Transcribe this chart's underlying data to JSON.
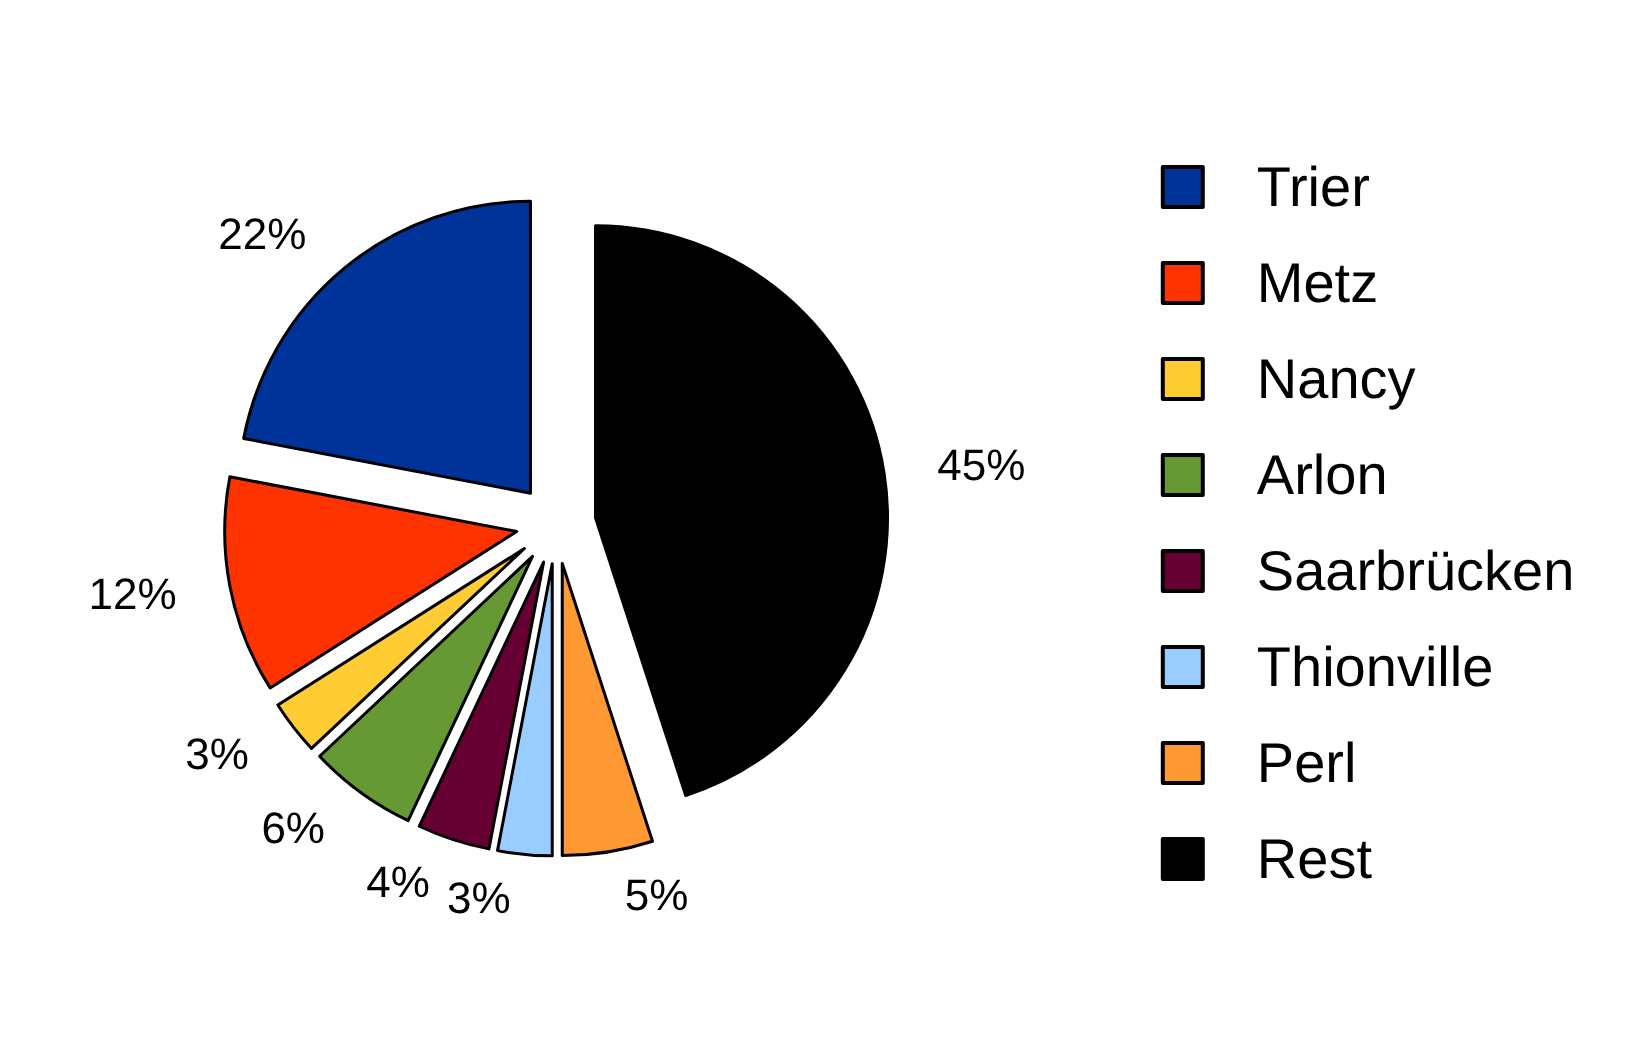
{
  "chart_data": {
    "type": "pie",
    "categories": [
      "Trier",
      "Metz",
      "Nancy",
      "Arlon",
      "Saarbrücken",
      "Thionville",
      "Perl",
      "Rest"
    ],
    "values": [
      22,
      12,
      3,
      6,
      4,
      3,
      5,
      45
    ],
    "value_labels": [
      "22%",
      "12%",
      "3%",
      "6%",
      "4%",
      "3%",
      "5%",
      "45%"
    ],
    "colors": [
      "#003399",
      "#ff3300",
      "#ffcc33",
      "#669933",
      "#660033",
      "#99ccff",
      "#ff9933",
      "#000000"
    ],
    "legend": "right"
  }
}
